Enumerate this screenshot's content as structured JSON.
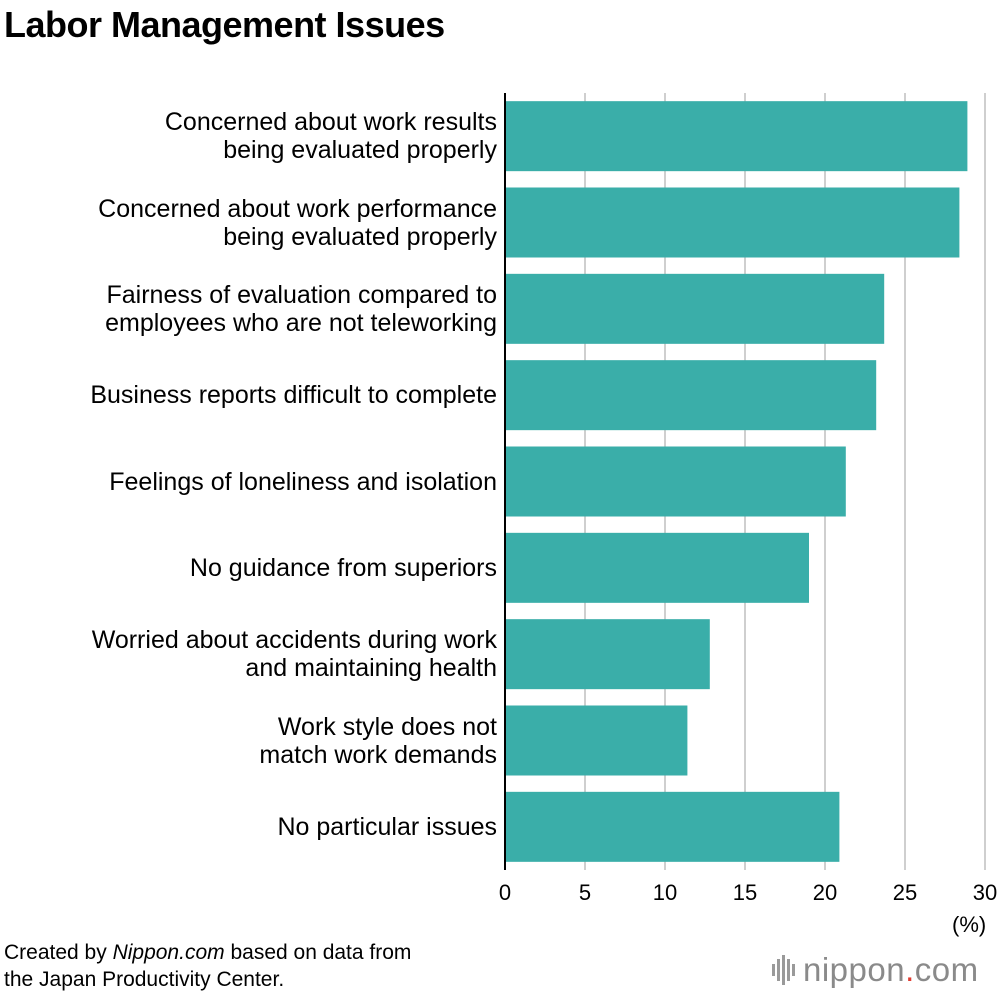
{
  "chart_data": {
    "type": "bar",
    "orientation": "horizontal",
    "title": "Labor Management Issues",
    "categories": [
      "Concerned about work results\nbeing evaluated properly",
      "Concerned about work performance\nbeing evaluated properly",
      "Fairness of evaluation compared to\nemployees who are not teleworking",
      "Business reports difficult to complete",
      "Feelings of loneliness and isolation",
      "No guidance from superiors",
      "Worried about accidents during work\nand maintaining health",
      "Work style does not\nmatch work demands",
      "No particular issues"
    ],
    "values": [
      28.9,
      28.4,
      23.7,
      23.2,
      21.3,
      19.0,
      12.8,
      11.4,
      20.9
    ],
    "xlim": [
      0,
      30
    ],
    "xticks": [
      0,
      5,
      10,
      15,
      20,
      25,
      30
    ],
    "xunit": "(%)",
    "grid": true,
    "bar_color": "#3aaea9"
  },
  "footer": {
    "credit_prefix": "Created by ",
    "credit_source": "Nippon.com",
    "credit_suffix": " based on data from",
    "credit_line2": "the Japan Productivity Center."
  },
  "logo": {
    "text_main": "nippon",
    "text_dot": ".",
    "text_tail": "com",
    "icon": "nippon-logo-icon"
  }
}
